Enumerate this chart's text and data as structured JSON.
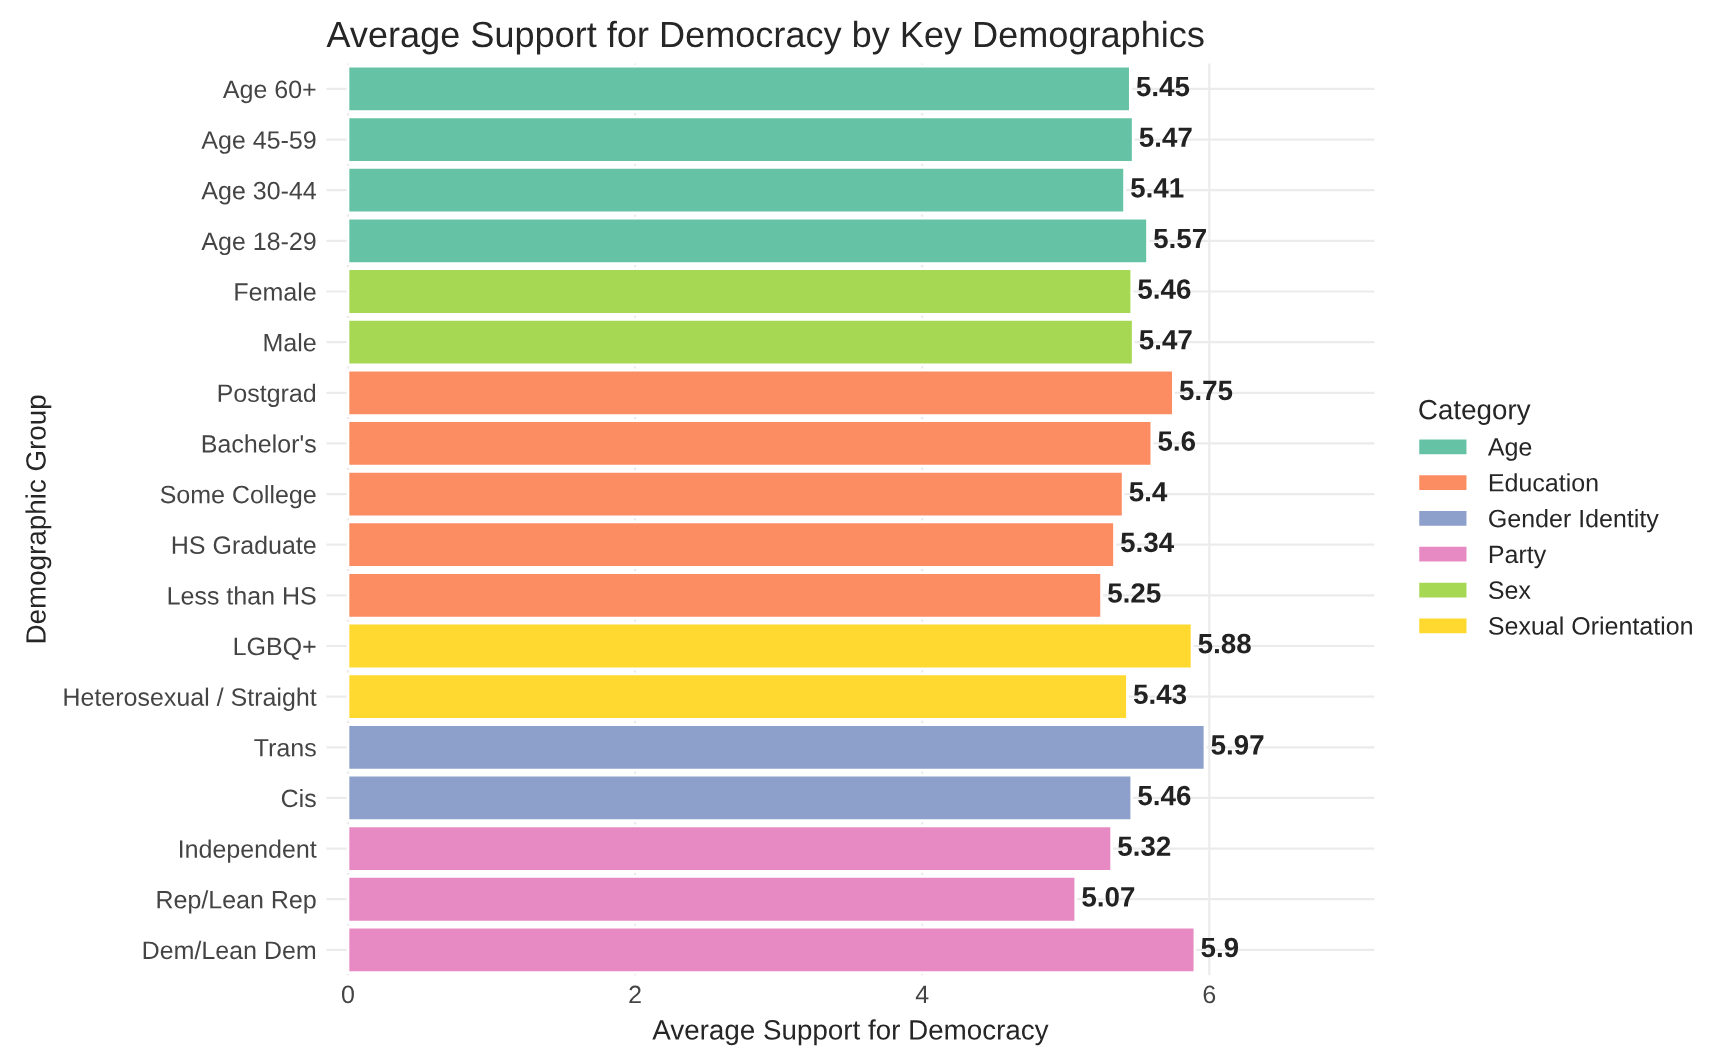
{
  "chart_data": {
    "type": "bar",
    "orientation": "horizontal",
    "title": "Average Support for Democracy by Key Demographics",
    "xlabel": "Average Support for Democracy",
    "ylabel": "Demographic Group",
    "legend_title": "Category",
    "legend": "right",
    "grid": true,
    "data_labels": true,
    "categories": [
      "Age 60+",
      "Age 45-59",
      "Age 30-44",
      "Age 18-29",
      "Female",
      "Male",
      "Postgrad",
      "Bachelor's",
      "Some College",
      "HS Graduate",
      "Less than HS",
      "LGBQ+",
      "Heterosexual / Straight",
      "Trans",
      "Cis",
      "Independent",
      "Rep/Lean Rep",
      "Dem/Lean Dem"
    ],
    "xlim": [
      -0.15,
      7.15
    ],
    "xticks": [
      0,
      2,
      4,
      6
    ],
    "series": [
      {
        "name": "Age",
        "color": "#66c2a5",
        "values": [
          5.45,
          5.47,
          5.41,
          5.57,
          null,
          null,
          null,
          null,
          null,
          null,
          null,
          null,
          null,
          null,
          null,
          null,
          null,
          null
        ]
      },
      {
        "name": "Education",
        "color": "#fc8d62",
        "values": [
          null,
          null,
          null,
          null,
          null,
          null,
          5.75,
          5.6,
          5.4,
          5.34,
          5.25,
          null,
          null,
          null,
          null,
          null,
          null,
          null
        ]
      },
      {
        "name": "Gender Identity",
        "color": "#8da0cb",
        "values": [
          null,
          null,
          null,
          null,
          null,
          null,
          null,
          null,
          null,
          null,
          null,
          null,
          null,
          5.97,
          5.46,
          null,
          null,
          null
        ]
      },
      {
        "name": "Party",
        "color": "#e78ac3",
        "values": [
          null,
          null,
          null,
          null,
          null,
          null,
          null,
          null,
          null,
          null,
          null,
          null,
          null,
          null,
          null,
          5.32,
          5.07,
          5.9
        ]
      },
      {
        "name": "Sex",
        "color": "#a6d854",
        "values": [
          null,
          null,
          null,
          null,
          5.46,
          5.47,
          null,
          null,
          null,
          null,
          null,
          null,
          null,
          null,
          null,
          null,
          null,
          null
        ]
      },
      {
        "name": "Sexual Orientation",
        "color": "#ffd92f",
        "values": [
          null,
          null,
          null,
          null,
          null,
          null,
          null,
          null,
          null,
          null,
          null,
          5.88,
          5.43,
          null,
          null,
          null,
          null,
          null
        ]
      }
    ]
  }
}
